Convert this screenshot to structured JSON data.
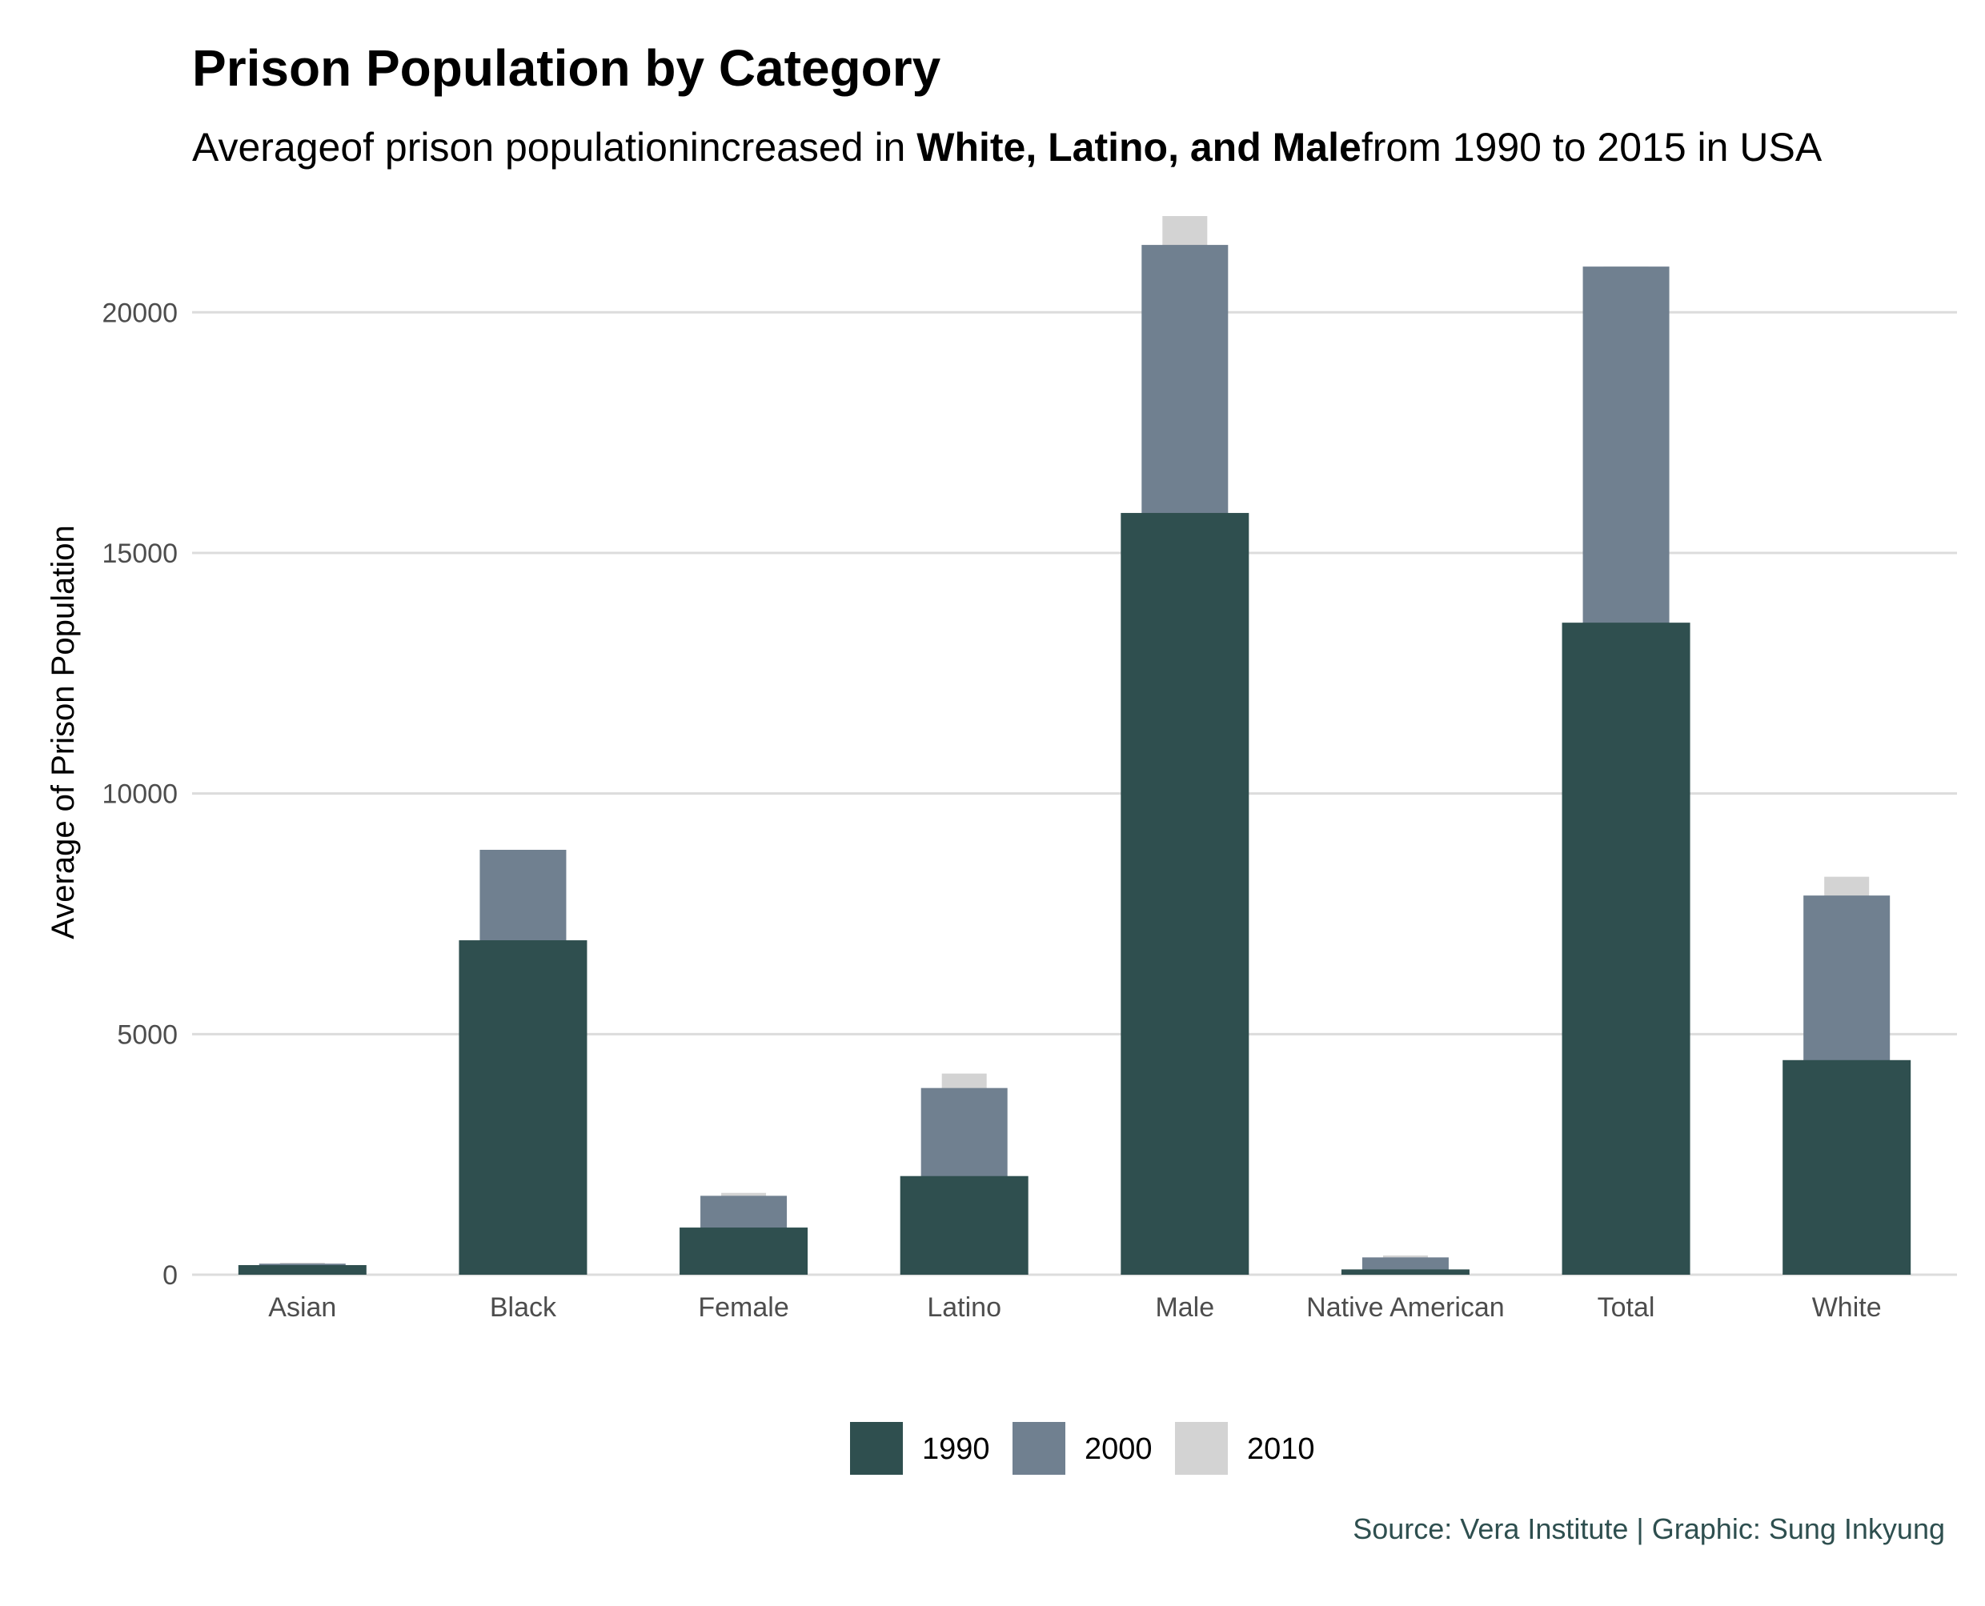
{
  "chart_data": {
    "type": "bar",
    "title": "Prison Population by Category",
    "subtitle": {
      "pre": "Averageof prison populationincreased in ",
      "bold": "White, Latino, and Male",
      "post": "from 1990 to 2015 in USA"
    },
    "caption": "Source: Vera Institute | Graphic: Sung Inkyung",
    "xlabel": "",
    "ylabel": "Average of Prison Population",
    "ylim": [
      0,
      22000
    ],
    "yticks": [
      0,
      5000,
      10000,
      15000,
      20000
    ],
    "grid": true,
    "legend_position": "bottom",
    "categories": [
      "Asian",
      "Black",
      "Female",
      "Latino",
      "Male",
      "Native American",
      "Total",
      "White"
    ],
    "series": [
      {
        "name": "1990",
        "color": "#2f4f4f",
        "values": [
          200,
          6950,
          980,
          2050,
          15830,
          110,
          13550,
          4460
        ]
      },
      {
        "name": "2000",
        "color": "#708090",
        "values": [
          230,
          8830,
          1640,
          3880,
          21400,
          360,
          20950,
          7880
        ]
      },
      {
        "name": "2010",
        "color": "#d3d3d3",
        "values": [
          250,
          8830,
          1700,
          4180,
          22000,
          400,
          20950,
          8270
        ]
      }
    ]
  }
}
